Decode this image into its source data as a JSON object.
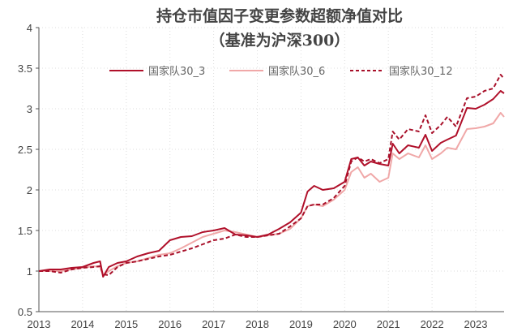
{
  "chart_data": {
    "type": "line",
    "title": "持仓市值因子变更参数超额净值对比",
    "subtitle": "（基准为沪深300）",
    "xlabel": "",
    "ylabel": "",
    "xlim": [
      2013,
      2023.65
    ],
    "ylim": [
      0.5,
      4
    ],
    "grid": true,
    "legend_position": "top-right",
    "x_ticks": [
      "2013",
      "2014",
      "2015",
      "2016",
      "2017",
      "2018",
      "2019",
      "2020",
      "2021",
      "2022",
      "2023"
    ],
    "y_ticks": [
      "0.5",
      "1",
      "1.5",
      "2",
      "2.5",
      "3",
      "3.5",
      "4"
    ],
    "x": [
      2013,
      2013.25,
      2013.5,
      2013.75,
      2014,
      2014.25,
      2014.4,
      2014.47,
      2014.6,
      2014.8,
      2015,
      2015.25,
      2015.5,
      2015.75,
      2016,
      2016.25,
      2016.5,
      2016.75,
      2017,
      2017.25,
      2017.5,
      2017.75,
      2018,
      2018.25,
      2018.5,
      2018.75,
      2019,
      2019.15,
      2019.3,
      2019.5,
      2019.75,
      2020,
      2020.15,
      2020.3,
      2020.45,
      2020.6,
      2020.8,
      2021,
      2021.1,
      2021.25,
      2021.45,
      2021.7,
      2021.85,
      2022,
      2022.2,
      2022.35,
      2022.55,
      2022.8,
      2023,
      2023.2,
      2023.4,
      2023.57,
      2023.65
    ],
    "series": [
      {
        "name": "国家队30_3",
        "color": "#b0102a",
        "dash": "solid",
        "values": [
          1.0,
          1.02,
          1.02,
          1.04,
          1.05,
          1.1,
          1.12,
          0.93,
          1.05,
          1.1,
          1.12,
          1.18,
          1.22,
          1.25,
          1.38,
          1.42,
          1.43,
          1.48,
          1.5,
          1.53,
          1.45,
          1.44,
          1.42,
          1.45,
          1.52,
          1.6,
          1.72,
          1.98,
          2.05,
          2.0,
          2.02,
          2.1,
          2.38,
          2.4,
          2.3,
          2.35,
          2.32,
          2.3,
          2.57,
          2.45,
          2.55,
          2.52,
          2.68,
          2.48,
          2.58,
          2.62,
          2.67,
          3.01,
          3.0,
          3.05,
          3.12,
          3.22,
          3.19
        ]
      },
      {
        "name": "国家队30_6",
        "color": "#f0a8a8",
        "dash": "solid",
        "values": [
          1.0,
          1.0,
          1.0,
          1.02,
          1.04,
          1.06,
          1.05,
          0.95,
          1.0,
          1.06,
          1.1,
          1.12,
          1.16,
          1.2,
          1.22,
          1.28,
          1.35,
          1.42,
          1.46,
          1.5,
          1.48,
          1.45,
          1.42,
          1.44,
          1.46,
          1.52,
          1.65,
          1.8,
          1.82,
          1.8,
          1.88,
          2.0,
          2.22,
          2.28,
          2.15,
          2.2,
          2.1,
          2.15,
          2.45,
          2.38,
          2.45,
          2.4,
          2.55,
          2.38,
          2.45,
          2.52,
          2.5,
          2.75,
          2.76,
          2.78,
          2.82,
          2.95,
          2.9
        ]
      },
      {
        "name": "国家队30_12",
        "color": "#a8102a",
        "dash": "dashed",
        "values": [
          1.0,
          1.0,
          0.98,
          1.02,
          1.04,
          1.05,
          1.06,
          0.96,
          0.95,
          1.05,
          1.1,
          1.12,
          1.15,
          1.18,
          1.2,
          1.24,
          1.28,
          1.33,
          1.38,
          1.4,
          1.45,
          1.42,
          1.42,
          1.44,
          1.46,
          1.55,
          1.65,
          1.8,
          1.82,
          1.82,
          1.9,
          2.05,
          2.35,
          2.4,
          2.35,
          2.38,
          2.33,
          2.38,
          2.72,
          2.62,
          2.75,
          2.72,
          2.92,
          2.7,
          2.8,
          2.9,
          2.78,
          3.13,
          3.15,
          3.22,
          3.25,
          3.42,
          3.37
        ]
      }
    ]
  }
}
